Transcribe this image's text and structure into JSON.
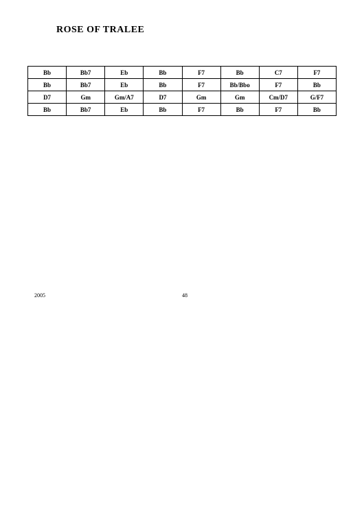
{
  "title": "ROSE  OF  TRALEE",
  "footer": {
    "year": "2005",
    "page": "48"
  },
  "table": {
    "rows": [
      [
        "Bb",
        "Bb7",
        "Eb",
        "Bb",
        "F7",
        "Bb",
        "C7",
        "F7"
      ],
      [
        "Bb",
        "Bb7",
        "Eb",
        "Bb",
        "F7",
        "Bb/Bbo",
        "F7",
        "Bb"
      ],
      [
        "D7",
        "Gm",
        "Gm/A7",
        "D7",
        "Gm",
        "Gm",
        "Cm/D7",
        "G/F7"
      ],
      [
        "Bb",
        "Bb7",
        "Eb",
        "Bb",
        "F7",
        "Bb",
        "F7",
        "Bb"
      ]
    ],
    "border_color": "#000000",
    "cell_font_size": 9,
    "cell_font_weight": "bold",
    "background": "#ffffff"
  }
}
